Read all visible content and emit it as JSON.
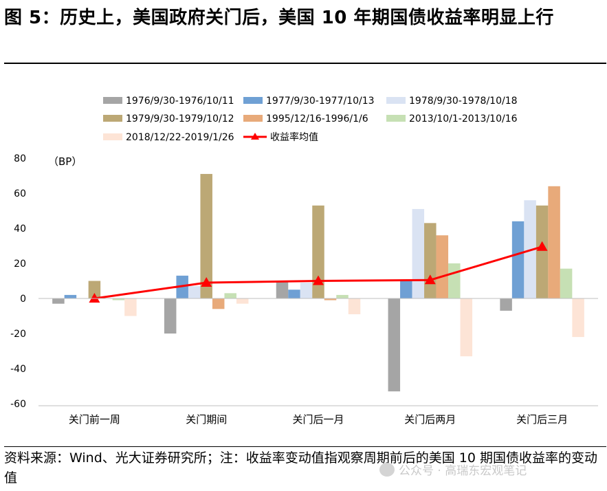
{
  "title": "图 5：历史上，美国政府关门后，美国 10 年期国债收益率明显上行",
  "source_note": "资料来源：Wind、光大证券研究所；注：收益率变动值指观察周期前后的美国 10 期国债收益率的变动值",
  "watermark": "公众号 · 高瑞东宏观笔记",
  "colors": {
    "s1": "#a5a5a5",
    "s2": "#6fa0d4",
    "s3": "#dae3f3",
    "s4": "#bca875",
    "s5": "#e8aa7a",
    "s6": "#c6e0b4",
    "s7": "#fde4d6",
    "avg": "#ff0000"
  },
  "chart_data": {
    "type": "bar",
    "unit_label": "（BP）",
    "ylim": [
      -60,
      80
    ],
    "yticks": [
      -60,
      -40,
      -20,
      0,
      20,
      40,
      60,
      80
    ],
    "categories": [
      "关门前一周",
      "关门期间",
      "关门后一月",
      "关门后两月",
      "关门后三月"
    ],
    "series": [
      {
        "name": "1976/9/30-1976/10/11",
        "values": [
          -3,
          -20,
          10,
          -53,
          -7
        ]
      },
      {
        "name": "1977/9/30-1977/10/13",
        "values": [
          2,
          13,
          5,
          10,
          44
        ]
      },
      {
        "name": "1978/9/30-1978/10/18",
        "values": [
          0,
          7,
          9,
          51,
          56
        ]
      },
      {
        "name": "1979/9/30-1979/10/12",
        "values": [
          10,
          71,
          53,
          43,
          53
        ]
      },
      {
        "name": "1995/12/16-1996/1/6",
        "values": [
          0,
          -6,
          -1,
          36,
          64
        ]
      },
      {
        "name": "2013/10/1-2013/10/16",
        "values": [
          -1,
          3,
          2,
          20,
          17
        ]
      },
      {
        "name": "2018/12/22-2019/1/26",
        "values": [
          -10,
          -3,
          -9,
          -33,
          -22
        ]
      }
    ],
    "line_series": {
      "name": "收益率均值",
      "values": [
        0,
        9,
        10,
        10.5,
        29.5
      ]
    },
    "legend_position": "top"
  }
}
